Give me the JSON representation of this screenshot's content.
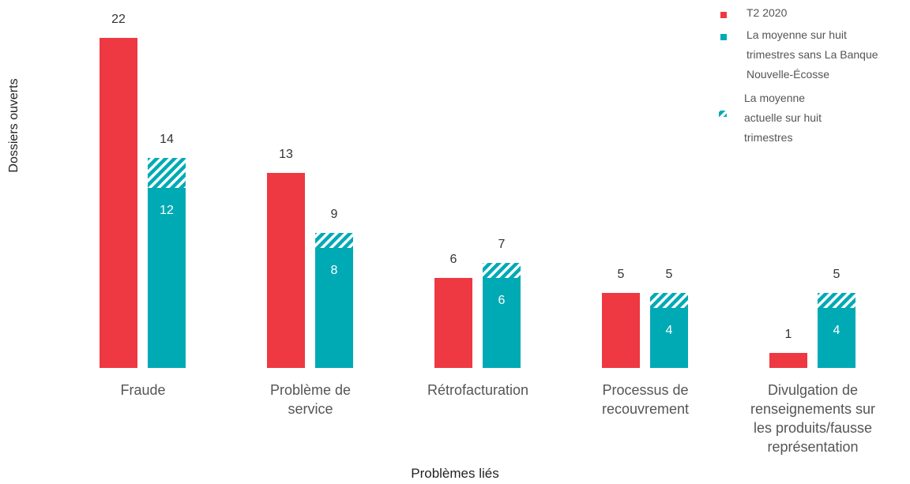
{
  "chart_data": {
    "type": "bar",
    "x_label": "Problèmes liés",
    "y_label": "Dossiers ouverts",
    "categories": [
      "Fraude",
      "Problème de\nservice",
      "Rétrofacturation",
      "Processus de\nrecouvrement",
      "Divulgation de\nrenseignements sur\nles produits/fausse\nreprésentation"
    ],
    "series": [
      {
        "name": "T2 2020",
        "color": "#ee3842",
        "values": [
          22,
          13,
          6,
          5,
          1
        ]
      },
      {
        "name": "La moyenne sur huit\ntrimestres sans La Banque\nNouvelle-Écosse",
        "color": "#00aab5",
        "values": [
          12,
          8,
          6,
          4,
          4
        ]
      },
      {
        "name": "La moyenne\nactuelle sur huit\ntrimestres",
        "color": "#00aab5",
        "pattern": "hatch",
        "values": [
          14,
          9,
          7,
          5,
          5
        ]
      }
    ],
    "legend": "top-right"
  }
}
